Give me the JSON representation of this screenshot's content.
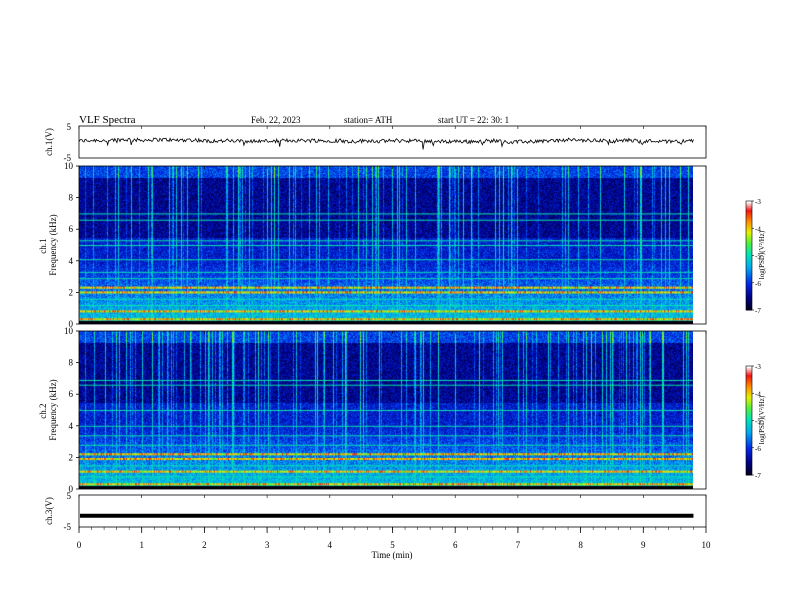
{
  "header": {
    "title": "VLF  Spectra",
    "date": "Feb. 22, 2023",
    "station": "station= ATH",
    "start": "start  UT  =   22: 30: 1"
  },
  "colors": {
    "background": "#ffffff",
    "axis": "#000000",
    "spectrogram_low": "#00005a",
    "spectrogram_mid": "#00c8e6",
    "spectrogram_high": "#ff0000"
  },
  "chart_data": [
    {
      "type": "line",
      "id": "ch1-waveform",
      "ylabel": "ch.1(V)",
      "ylim": [
        -5,
        5
      ],
      "yticks": [
        "5",
        "-5"
      ],
      "xlim": [
        0,
        10
      ],
      "x_extent_data": 9.8,
      "series": [
        {
          "name": "",
          "level": 0.3,
          "noise_amplitude": 0.6
        }
      ]
    },
    {
      "type": "heatmap",
      "id": "ch1-spectrogram",
      "ylabel": "ch.1\nFrequency  (kHz)",
      "ylim": [
        0,
        10
      ],
      "yticks": [
        "0",
        "2",
        "4",
        "6",
        "8",
        "10"
      ],
      "xlim": [
        0,
        10
      ],
      "x_extent_data": 9.8,
      "bands_khz": [
        0.3,
        0.8,
        1.2,
        1.6,
        2.0,
        2.3,
        2.9,
        3.3,
        4.1,
        5.0,
        5.3,
        6.6,
        7.0
      ],
      "strong_bands_khz": [
        0.3,
        0.8,
        2.0,
        2.3
      ]
    },
    {
      "type": "heatmap",
      "id": "ch2-spectrogram",
      "ylabel": "ch.2\nFrequency  (kHz)",
      "ylim": [
        0,
        10
      ],
      "yticks": [
        "0",
        "2",
        "4",
        "6",
        "8",
        "10"
      ],
      "xlim": [
        0,
        10
      ],
      "x_extent_data": 9.8,
      "bands_khz": [
        0.3,
        0.8,
        1.1,
        1.5,
        1.9,
        2.2,
        2.8,
        3.4,
        4.0,
        5.0,
        6.6,
        6.9
      ],
      "strong_bands_khz": [
        0.3,
        1.1,
        1.9,
        2.2
      ]
    },
    {
      "type": "line",
      "id": "ch3-waveform",
      "ylabel": "ch.3(V)",
      "ylim": [
        -5,
        5
      ],
      "yticks": [
        "5",
        "-5"
      ],
      "xlim": [
        0,
        10
      ],
      "x_extent_data": 9.8,
      "series": [
        {
          "name": "",
          "level": -1.5,
          "noise_amplitude": 0.0
        }
      ]
    }
  ],
  "x_axis": {
    "label": "Time  (min)",
    "ticks": [
      "0",
      "1",
      "2",
      "3",
      "4",
      "5",
      "6",
      "7",
      "8",
      "9",
      "10"
    ]
  },
  "colorbars": [
    {
      "id": "ch1-colorbar",
      "label": "log(PSD)(V²/Hz)",
      "range": [
        -7,
        -3
      ],
      "ticks": [
        "-3",
        "-4",
        "-5",
        "-6",
        "-7"
      ]
    },
    {
      "id": "ch2-colorbar",
      "label": "log(PSD)(V²/Hz)",
      "range": [
        -7,
        -3
      ],
      "ticks": [
        "-3",
        "-4",
        "-5",
        "-6",
        "-7"
      ]
    }
  ]
}
